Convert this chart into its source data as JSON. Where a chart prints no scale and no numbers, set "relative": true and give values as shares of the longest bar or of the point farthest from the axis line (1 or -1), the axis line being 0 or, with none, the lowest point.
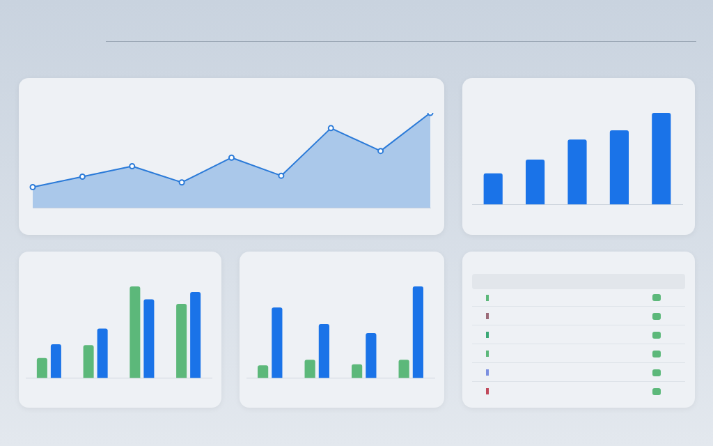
{
  "chart_data": [
    {
      "type": "area",
      "relative": true,
      "categories": [
        null,
        null,
        null,
        null,
        null,
        null,
        null,
        null,
        null
      ],
      "marker": "circle",
      "series": [
        {
          "color": "#2a7ad8",
          "values": [
            0.22,
            0.33,
            0.44,
            0.27,
            0.53,
            0.34,
            0.84,
            0.6,
            1
          ]
        }
      ]
    },
    {
      "type": "bar",
      "relative": true,
      "categories": [
        null,
        null,
        null,
        null,
        null
      ],
      "series": [
        {
          "color": "#1a73e8",
          "values": [
            0.34,
            0.49,
            0.71,
            0.81,
            1
          ]
        }
      ]
    },
    {
      "type": "bar",
      "relative": true,
      "categories": [
        null,
        null,
        null,
        null
      ],
      "series": [
        {
          "color": "#5cb87a",
          "values": [
            0.22,
            0.36,
            1,
            0.81
          ]
        },
        {
          "color": "#1a73e8",
          "values": [
            0.37,
            0.54,
            0.86,
            0.94
          ]
        }
      ]
    },
    {
      "type": "bar",
      "relative": true,
      "categories": [
        null,
        null,
        null,
        null
      ],
      "series": [
        {
          "color": "#5cb87a",
          "values": [
            0.14,
            0.2,
            0.15,
            0.2
          ]
        },
        {
          "color": "#1a73e8",
          "values": [
            0.77,
            0.59,
            0.49,
            1
          ]
        }
      ]
    }
  ]
}
